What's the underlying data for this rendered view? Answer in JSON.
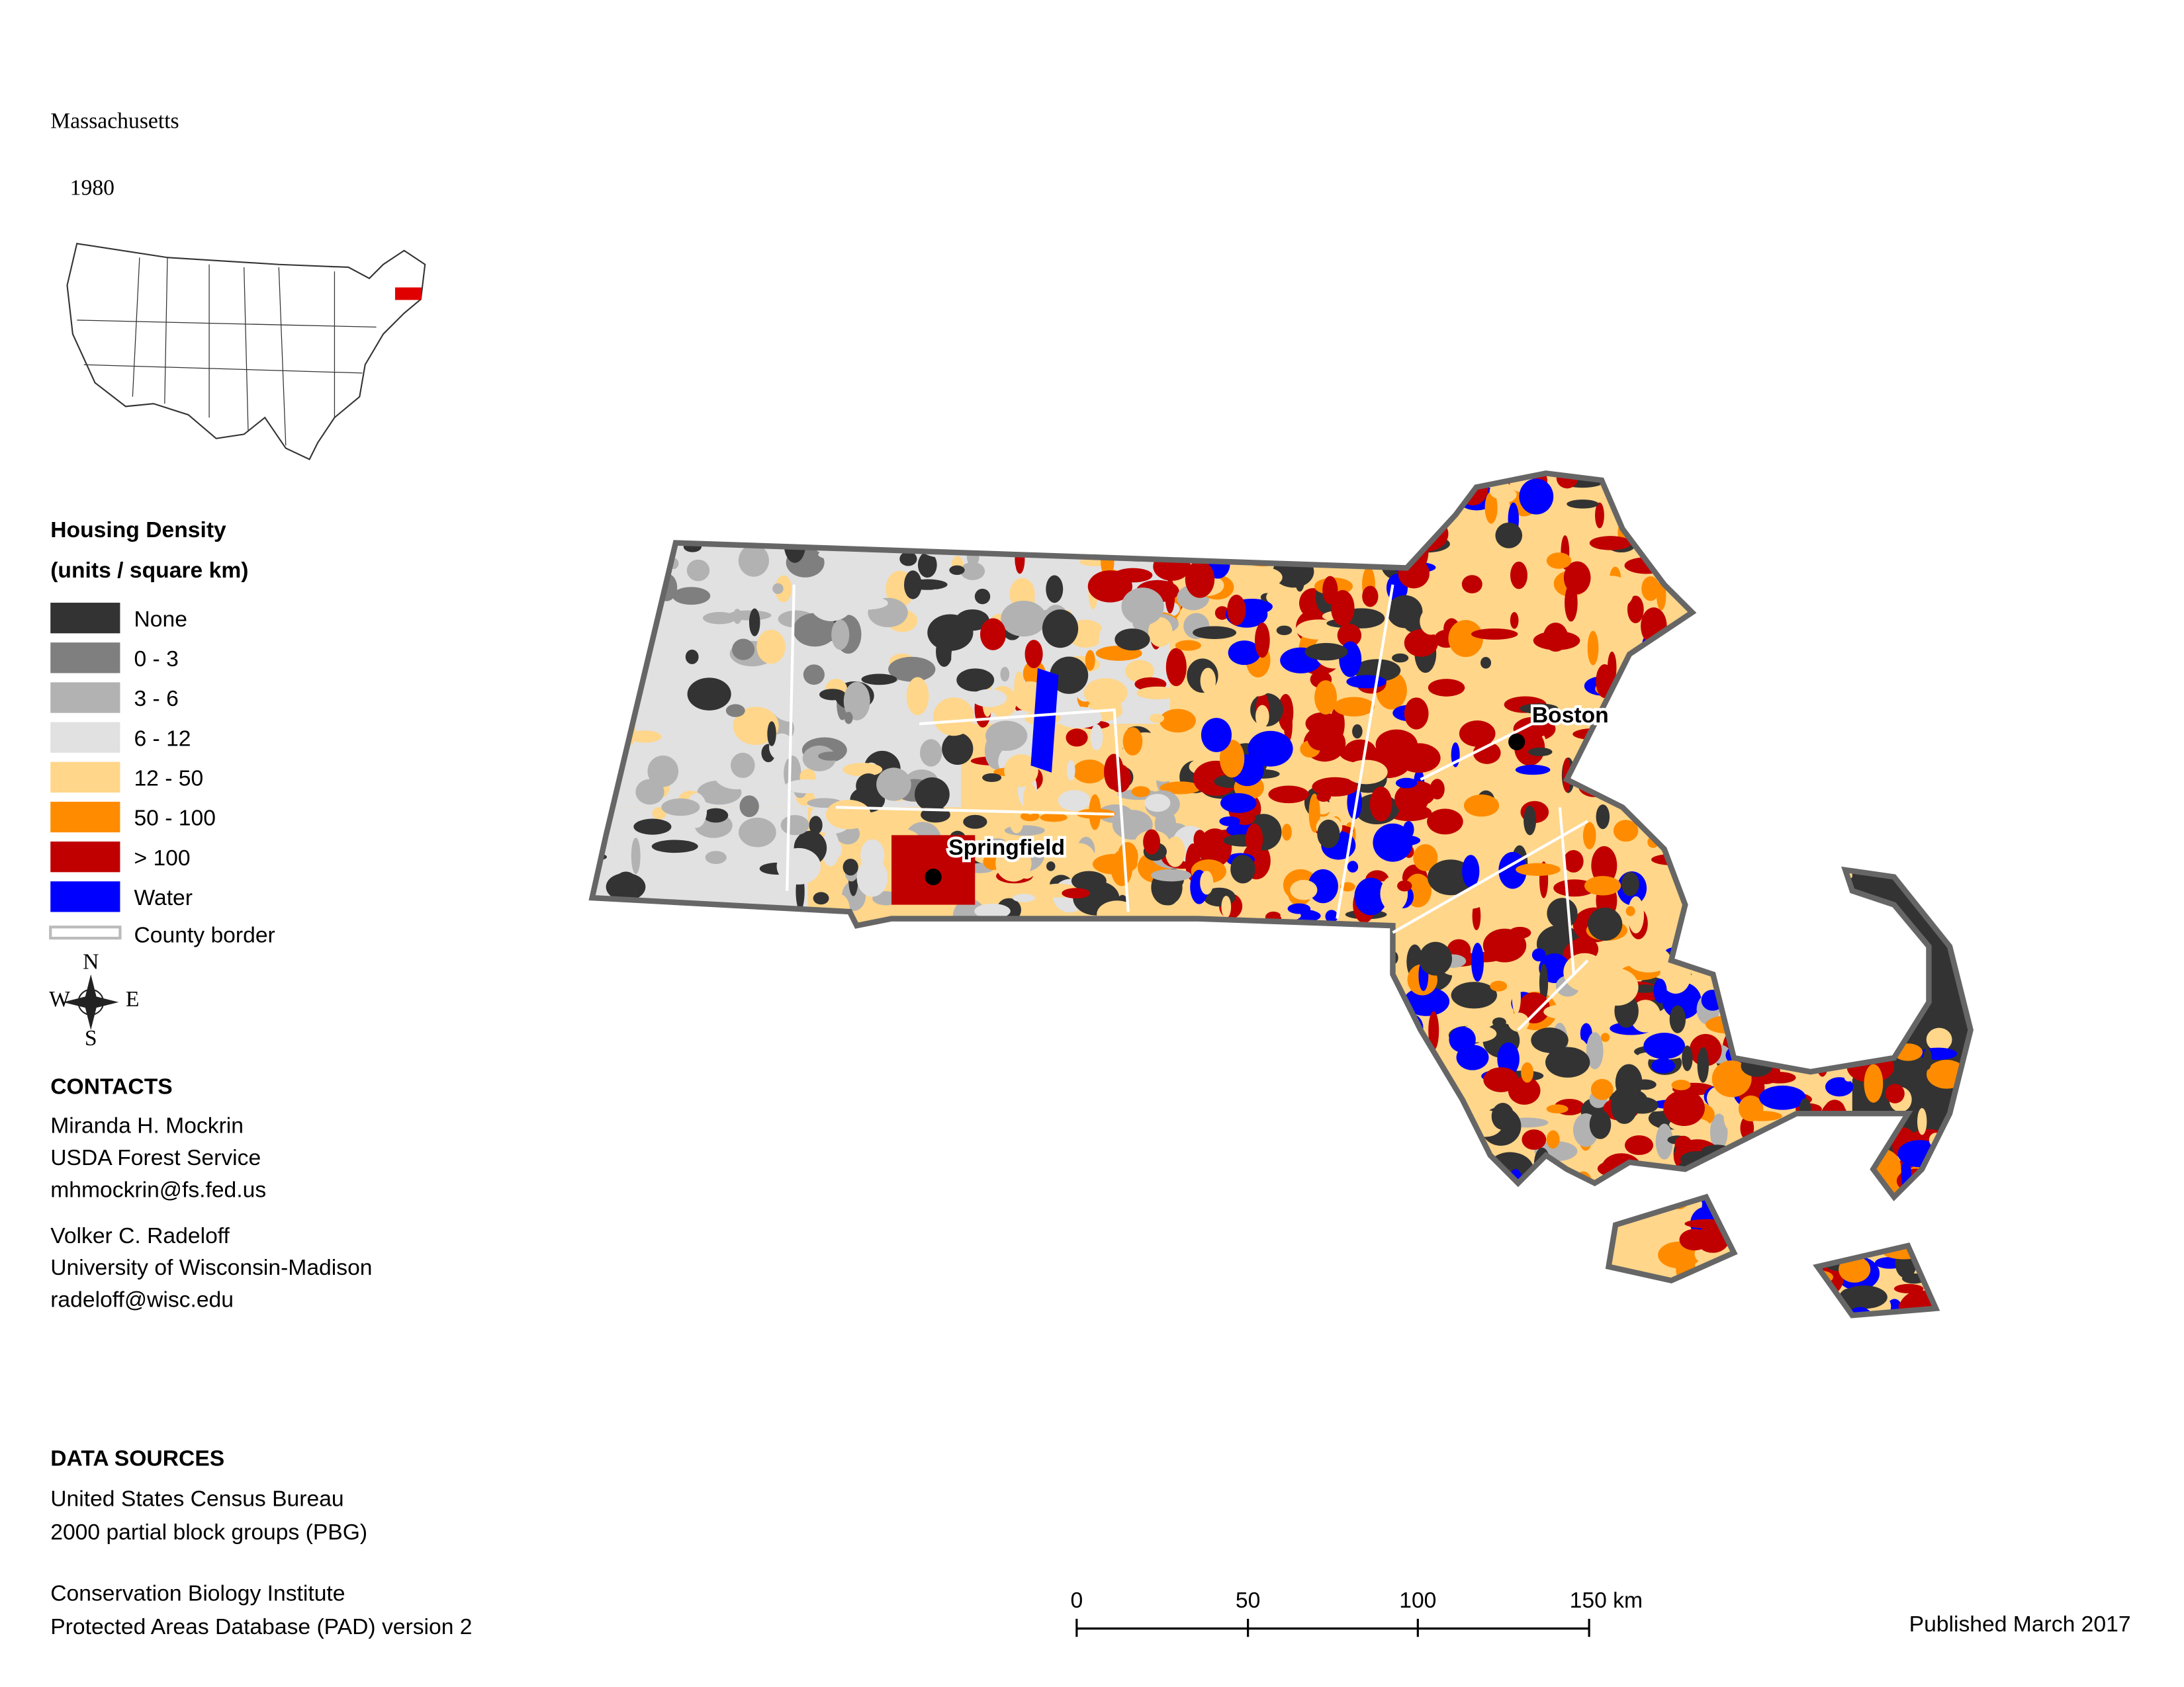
{
  "title": "Massachusetts",
  "subtitle": "1980",
  "legend": {
    "title": "Housing Density",
    "units": "(units / square km)",
    "items": [
      {
        "label": "None",
        "color": "#333333"
      },
      {
        "label": "0 - 3",
        "color": "#7f7f7f"
      },
      {
        "label": "3 - 6",
        "color": "#b2b2b2"
      },
      {
        "label": "6 - 12",
        "color": "#e1e1e1"
      },
      {
        "label": "12 - 50",
        "color": "#ffd68a"
      },
      {
        "label": "50 - 100",
        "color": "#ff8c00"
      },
      {
        "label": "> 100",
        "color": "#c00000"
      },
      {
        "label": "Water",
        "color": "#0000ff"
      }
    ],
    "county_border": "County border"
  },
  "compass": {
    "n": "N",
    "s": "S",
    "e": "E",
    "w": "W"
  },
  "cities": [
    "Boston",
    "Springfield"
  ],
  "contacts": {
    "heading": "CONTACTS",
    "people": [
      [
        "Miranda H. Mockrin",
        "USDA Forest Service",
        "mhmockrin@fs.fed.us"
      ],
      [
        "Volker C. Radeloff",
        "University of Wisconsin-Madison",
        "radeloff@wisc.edu"
      ]
    ]
  },
  "data_sources": {
    "heading": "DATA SOURCES",
    "entries": [
      [
        "United States Census Bureau",
        "2000 partial block groups (PBG)"
      ],
      [
        "Conservation Biology Institute",
        "Protected Areas Database (PAD) version 2"
      ]
    ]
  },
  "scale_bar": [
    "0",
    "50",
    "100",
    "150 km"
  ],
  "published": "Published March 2017"
}
